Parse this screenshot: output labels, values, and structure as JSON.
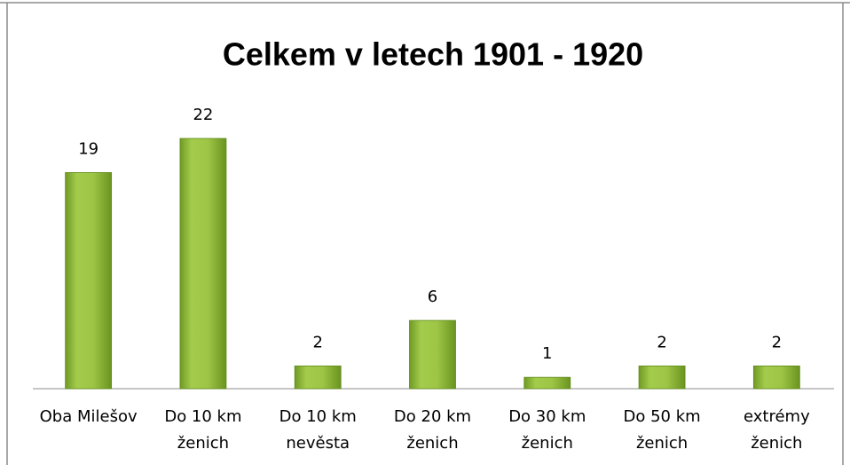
{
  "chart_data": {
    "type": "bar",
    "title": "Celkem v letech 1901 - 1920",
    "categories": [
      [
        "Oba Milešov"
      ],
      [
        "Do 10 km",
        "ženich"
      ],
      [
        "Do 10 km",
        "nevěsta"
      ],
      [
        "Do 20 km",
        "ženich"
      ],
      [
        "Do 30 km",
        "ženich"
      ],
      [
        "Do 50 km",
        "ženich"
      ],
      [
        "extrémy",
        "ženich"
      ]
    ],
    "values": [
      19,
      22,
      2,
      6,
      1,
      2,
      2
    ],
    "color": "#9bbb59"
  }
}
